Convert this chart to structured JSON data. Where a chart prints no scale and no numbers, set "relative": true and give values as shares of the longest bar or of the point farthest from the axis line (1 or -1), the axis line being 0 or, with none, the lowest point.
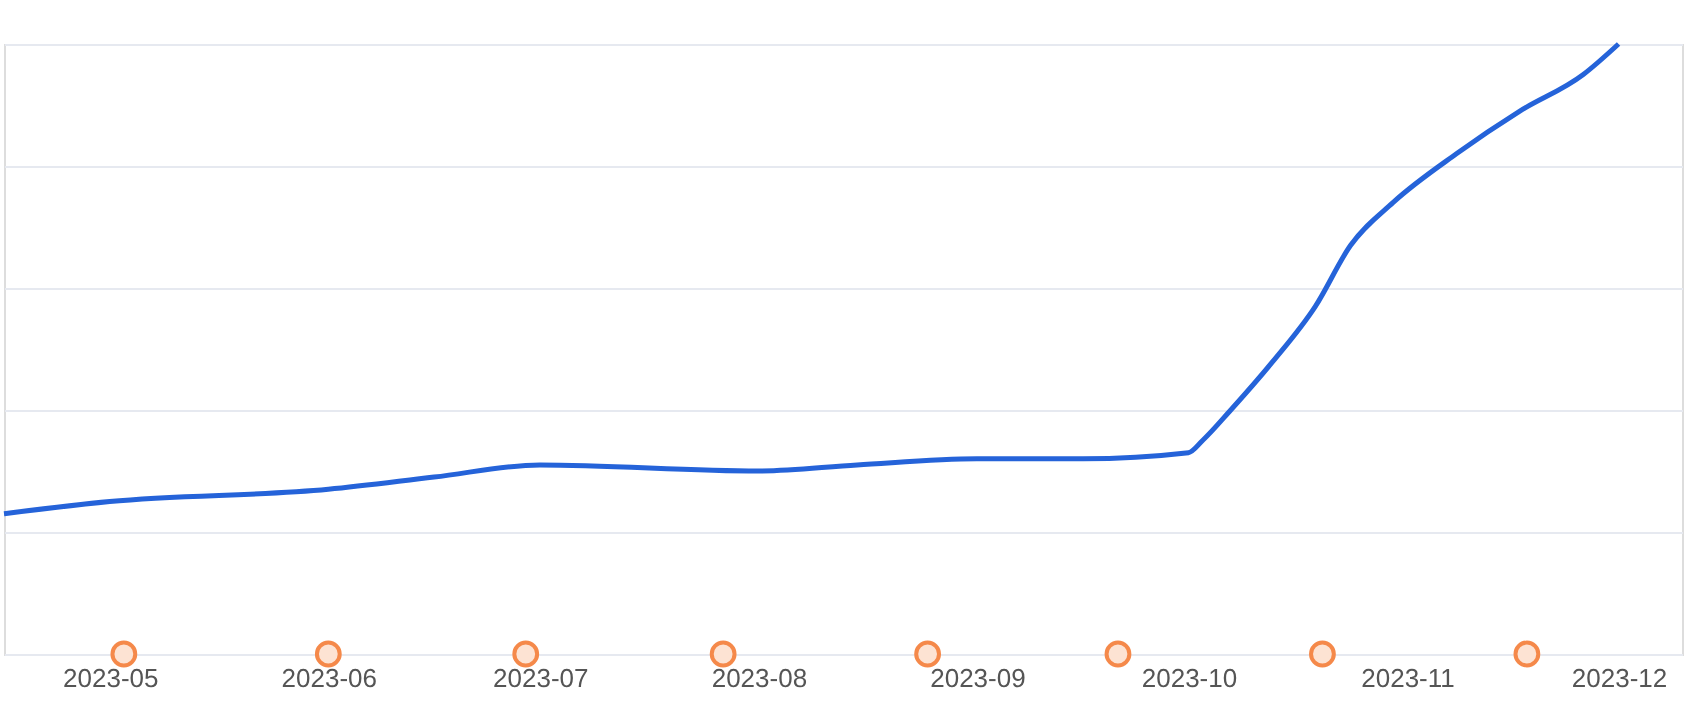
{
  "chart_data": {
    "type": "line",
    "relative": true,
    "grid": "y",
    "xlim": [
      "2023-04-16",
      "2023-12-10"
    ],
    "xticks": [
      {
        "value": "2023-05-01",
        "label": "2023-05"
      },
      {
        "value": "2023-06-01",
        "label": "2023-06"
      },
      {
        "value": "2023-07-01",
        "label": "2023-07"
      },
      {
        "value": "2023-08-01",
        "label": "2023-08"
      },
      {
        "value": "2023-09-01",
        "label": "2023-09"
      },
      {
        "value": "2023-10-01",
        "label": "2023-10"
      },
      {
        "value": "2023-11-01",
        "label": "2023-11"
      },
      {
        "value": "2023-12-01",
        "label": "2023-12"
      }
    ],
    "series": [
      {
        "color": "#2563d9",
        "marker": "none",
        "line_style": "solid",
        "x": [
          "2023-04-16",
          "2023-05-01",
          "2023-06-01",
          "2023-06-16",
          "2023-07-01",
          "2023-08-01",
          "2023-08-15",
          "2023-09-01",
          "2023-09-16",
          "2023-10-01",
          "2023-10-03",
          "2023-10-07",
          "2023-10-13",
          "2023-10-19",
          "2023-10-24",
          "2023-10-30",
          "2023-11-08",
          "2023-11-17",
          "2023-11-26",
          "2023-12-01"
        ],
        "values": [
          0.23,
          0.25,
          0.27,
          0.29,
          0.31,
          0.3,
          0.31,
          0.32,
          0.32,
          0.33,
          0.35,
          0.4,
          0.48,
          0.57,
          0.67,
          0.74,
          0.82,
          0.89,
          0.95,
          1
        ]
      },
      {
        "type": "scatter",
        "color": "#f5894a",
        "marker": "circle",
        "x": [
          "2023-05-03",
          "2023-06-01",
          "2023-06-29",
          "2023-07-27",
          "2023-08-25",
          "2023-09-21",
          "2023-10-20",
          "2023-11-18"
        ],
        "values": [
          0,
          0,
          0,
          0,
          0,
          0,
          0,
          0
        ]
      }
    ]
  }
}
